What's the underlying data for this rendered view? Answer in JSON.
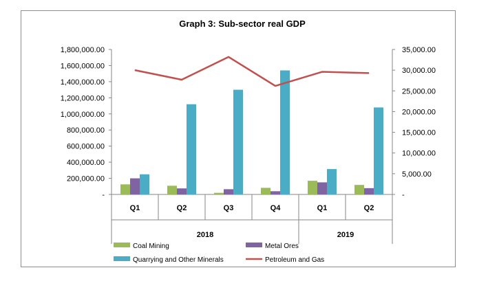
{
  "chart_data": {
    "type": "bar",
    "title": "Graph 3: Sub-sector real GDP",
    "categories": [
      "Q1",
      "Q2",
      "Q3",
      "Q4",
      "Q1",
      "Q2"
    ],
    "groups": [
      {
        "label": "2018",
        "span": 4
      },
      {
        "label": "2019",
        "span": 2
      }
    ],
    "y_left": {
      "ylim": [
        0,
        1800000
      ],
      "ticks": [
        0,
        200000,
        400000,
        600000,
        800000,
        1000000,
        1200000,
        1400000,
        1600000,
        1800000
      ],
      "tick_labels": [
        "-",
        "200,000.00",
        "400,000.00",
        "600,000.00",
        "800,000.00",
        "1,000,000.00",
        "1,200,000.00",
        "1,400,000.00",
        "1,600,000.00",
        "1,800,000.00"
      ]
    },
    "y_right": {
      "ylim": [
        0,
        35000
      ],
      "ticks": [
        0,
        5000,
        10000,
        15000,
        20000,
        25000,
        30000,
        35000
      ],
      "tick_labels": [
        "-",
        "5,000.00",
        "10,000.00",
        "15,000.00",
        "20,000.00",
        "25,000.00",
        "30,000.00",
        "35,000.00"
      ]
    },
    "series": [
      {
        "name": "Coal Mining",
        "type": "bar",
        "axis": "left",
        "color": "#9bbb59",
        "values": [
          125000,
          108000,
          20000,
          82000,
          170000,
          118000
        ]
      },
      {
        "name": "Metal Ores",
        "type": "bar",
        "axis": "left",
        "color": "#8064a2",
        "values": [
          200000,
          75000,
          65000,
          40000,
          150000,
          78000
        ]
      },
      {
        "name": "Quarrying and Other Minerals",
        "type": "bar",
        "axis": "left",
        "color": "#4bacc6",
        "values": [
          250000,
          1120000,
          1300000,
          1540000,
          315000,
          1080000
        ]
      },
      {
        "name": "Petroleum and Gas",
        "type": "line",
        "axis": "right",
        "color": "#c0504d",
        "values": [
          30000,
          27700,
          33200,
          26200,
          29600,
          29300
        ]
      }
    ]
  }
}
